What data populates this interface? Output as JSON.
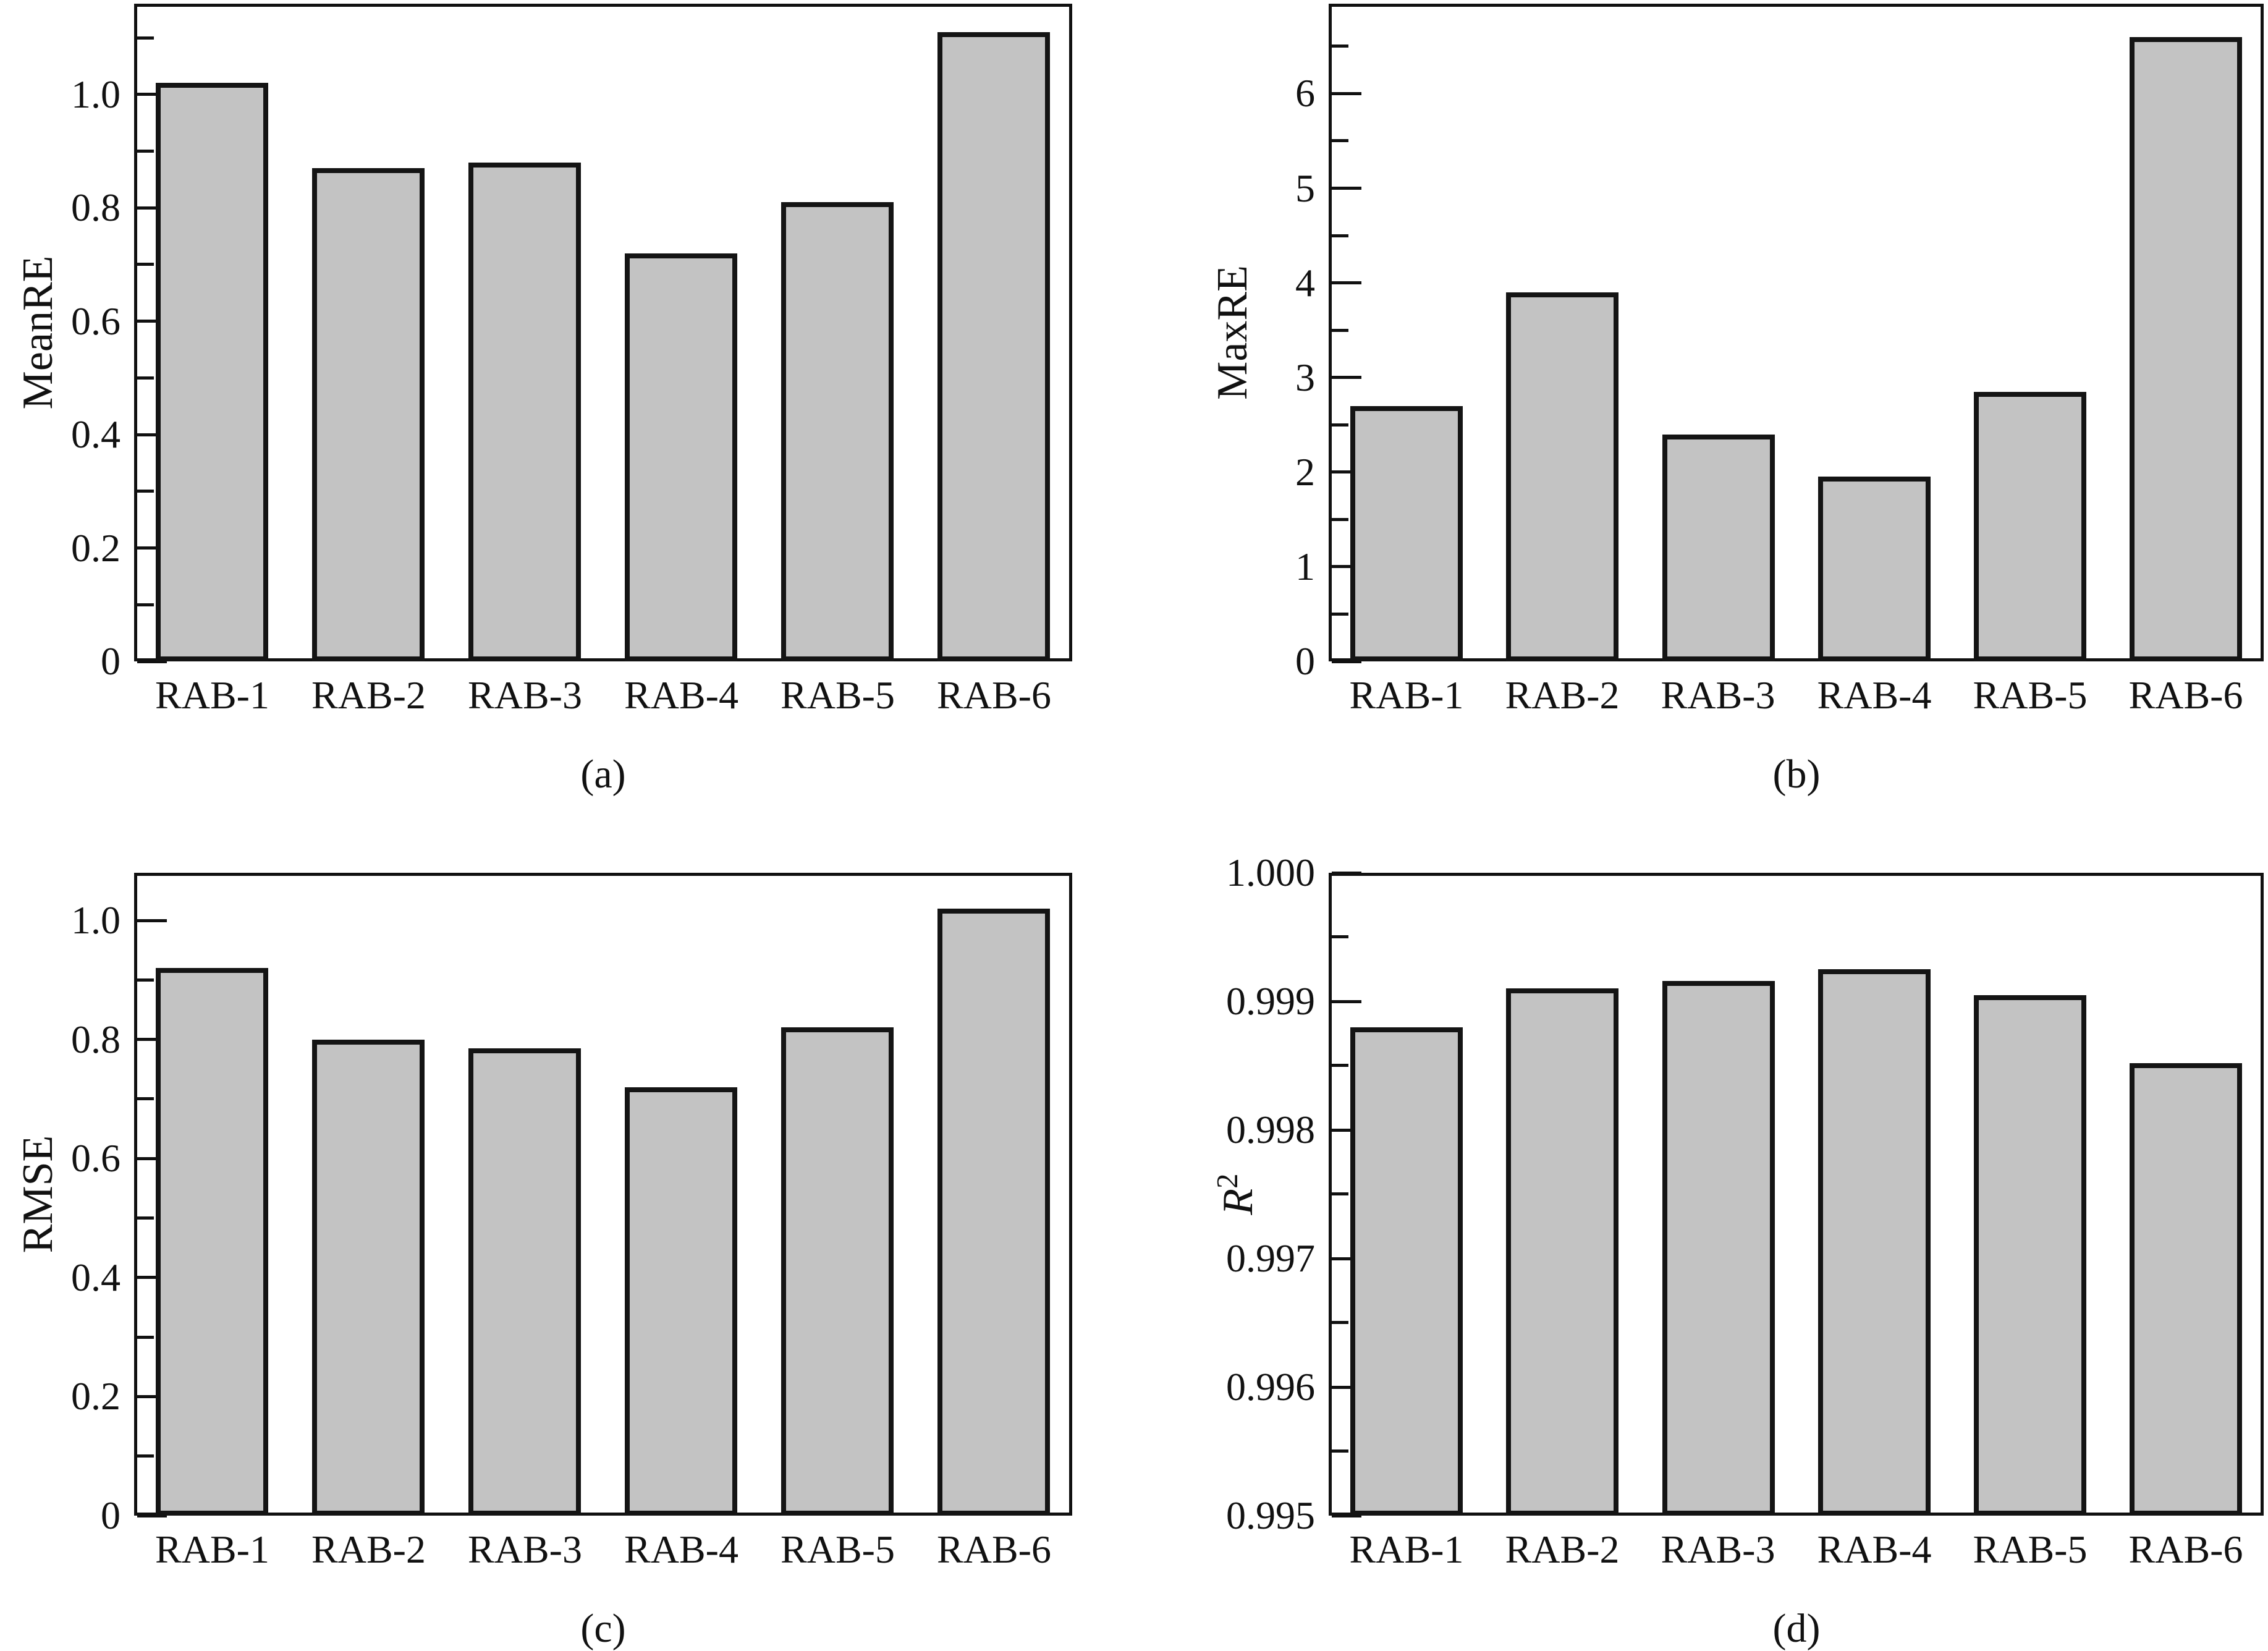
{
  "figure": {
    "background": "#ffffff",
    "bar_fill": "#c3c3c3",
    "bar_border": "#141414",
    "axis_color": "#111111",
    "categories": [
      "RAB-1",
      "RAB-2",
      "RAB-3",
      "RAB-4",
      "RAB-5",
      "RAB-6"
    ]
  },
  "chart_data": [
    {
      "type": "bar",
      "panel_label": "(a)",
      "ylabel": "MeanRE",
      "ylabel_is_math": false,
      "categories": [
        "RAB-1",
        "RAB-2",
        "RAB-3",
        "RAB-4",
        "RAB-5",
        "RAB-6"
      ],
      "values": [
        1.02,
        0.87,
        0.88,
        0.72,
        0.81,
        1.11
      ],
      "ylim": [
        0,
        1.16
      ],
      "ytick_values": [
        0,
        0.2,
        0.4,
        0.6,
        0.8,
        1.0
      ],
      "ytick_labels": [
        "0",
        "0.2",
        "0.4",
        "0.6",
        "0.8",
        "1.0"
      ],
      "minor_tick_values": [
        0.1,
        0.3,
        0.5,
        0.7,
        0.9,
        1.1
      ],
      "grid": false,
      "legend": null
    },
    {
      "type": "bar",
      "panel_label": "(b)",
      "ylabel": "MaxRE",
      "ylabel_is_math": false,
      "categories": [
        "RAB-1",
        "RAB-2",
        "RAB-3",
        "RAB-4",
        "RAB-5",
        "RAB-6"
      ],
      "values": [
        2.7,
        3.9,
        2.4,
        1.95,
        2.85,
        6.6
      ],
      "ylim": [
        0,
        6.95
      ],
      "ytick_values": [
        0,
        1,
        2,
        3,
        4,
        5,
        6
      ],
      "ytick_labels": [
        "0",
        "1",
        "2",
        "3",
        "4",
        "5",
        "6"
      ],
      "minor_tick_values": [
        0.5,
        1.5,
        2.5,
        3.5,
        4.5,
        5.5,
        6.5
      ],
      "grid": false,
      "legend": null
    },
    {
      "type": "bar",
      "panel_label": "(c)",
      "ylabel": "RMSE",
      "ylabel_is_math": false,
      "categories": [
        "RAB-1",
        "RAB-2",
        "RAB-3",
        "RAB-4",
        "RAB-5",
        "RAB-6"
      ],
      "values": [
        0.92,
        0.8,
        0.785,
        0.72,
        0.82,
        1.02
      ],
      "ylim": [
        0,
        1.08
      ],
      "ytick_values": [
        0,
        0.2,
        0.4,
        0.6,
        0.8,
        1.0
      ],
      "ytick_labels": [
        "0",
        "0.2",
        "0.4",
        "0.6",
        "0.8",
        "1.0"
      ],
      "minor_tick_values": [
        0.1,
        0.3,
        0.5,
        0.7,
        0.9
      ],
      "grid": false,
      "legend": null
    },
    {
      "type": "bar",
      "panel_label": "(d)",
      "ylabel": "R2",
      "ylabel_is_math": true,
      "ylabel_base": "R",
      "ylabel_sup": "2",
      "categories": [
        "RAB-1",
        "RAB-2",
        "RAB-3",
        "RAB-4",
        "RAB-5",
        "RAB-6"
      ],
      "values": [
        0.9988,
        0.9991,
        0.99916,
        0.99925,
        0.99905,
        0.99852
      ],
      "ylim": [
        0.995,
        1.0
      ],
      "ytick_values": [
        0.995,
        0.996,
        0.997,
        0.998,
        0.999,
        1.0
      ],
      "ytick_labels": [
        "0.995",
        "0.996",
        "0.997",
        "0.998",
        "0.999",
        "1.000"
      ],
      "minor_tick_values": [
        0.9955,
        0.9965,
        0.9975,
        0.9985,
        0.9995
      ],
      "grid": false,
      "legend": null
    }
  ]
}
